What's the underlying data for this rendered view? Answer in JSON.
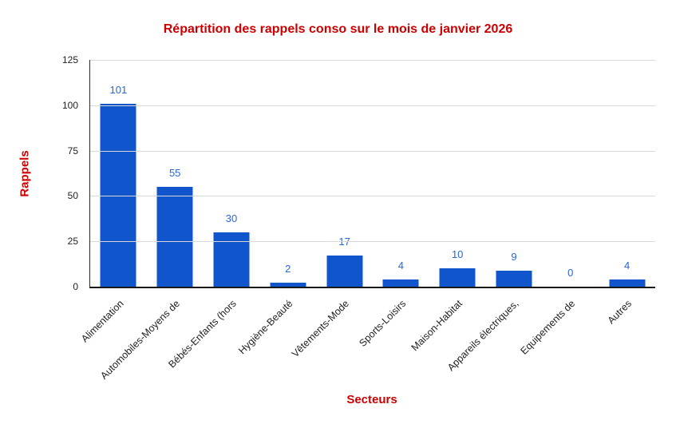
{
  "title": "Répartition des rappels conso sur le mois de janvier 2026",
  "colors": {
    "background": "#ffffff",
    "title": "#cc0000",
    "axis_title": "#cc0000",
    "bar": "#1155cc",
    "data_label": "#2a66d8",
    "grid": "#d9d9d9",
    "tick_label": "#1f1f1f",
    "axis_line": "#1a1a1a"
  },
  "chart_data": {
    "type": "bar",
    "title": "Répartition des rappels conso sur le mois de janvier 2026",
    "xlabel": "Secteurs",
    "ylabel": "Rappels",
    "categories": [
      "Alimentation",
      "Automobiles-Moyens de",
      "Bébés-Enfants (hors",
      "Hygiène-Beauté",
      "Vêtements-Mode",
      "Sports-Loisirs",
      "Maison-Habitat",
      "Appareils électriques,",
      "Equipements de",
      "Autres"
    ],
    "values": [
      101,
      55,
      30,
      2,
      17,
      4,
      10,
      9,
      0,
      4
    ],
    "data_labels": [
      101,
      55,
      30,
      2,
      17,
      4,
      10,
      9,
      0,
      4
    ],
    "ylim": [
      0,
      125
    ],
    "yticks": [
      0,
      25,
      50,
      75,
      100,
      125
    ],
    "grid": true,
    "legend": "none",
    "bar_color": "#1155cc"
  }
}
